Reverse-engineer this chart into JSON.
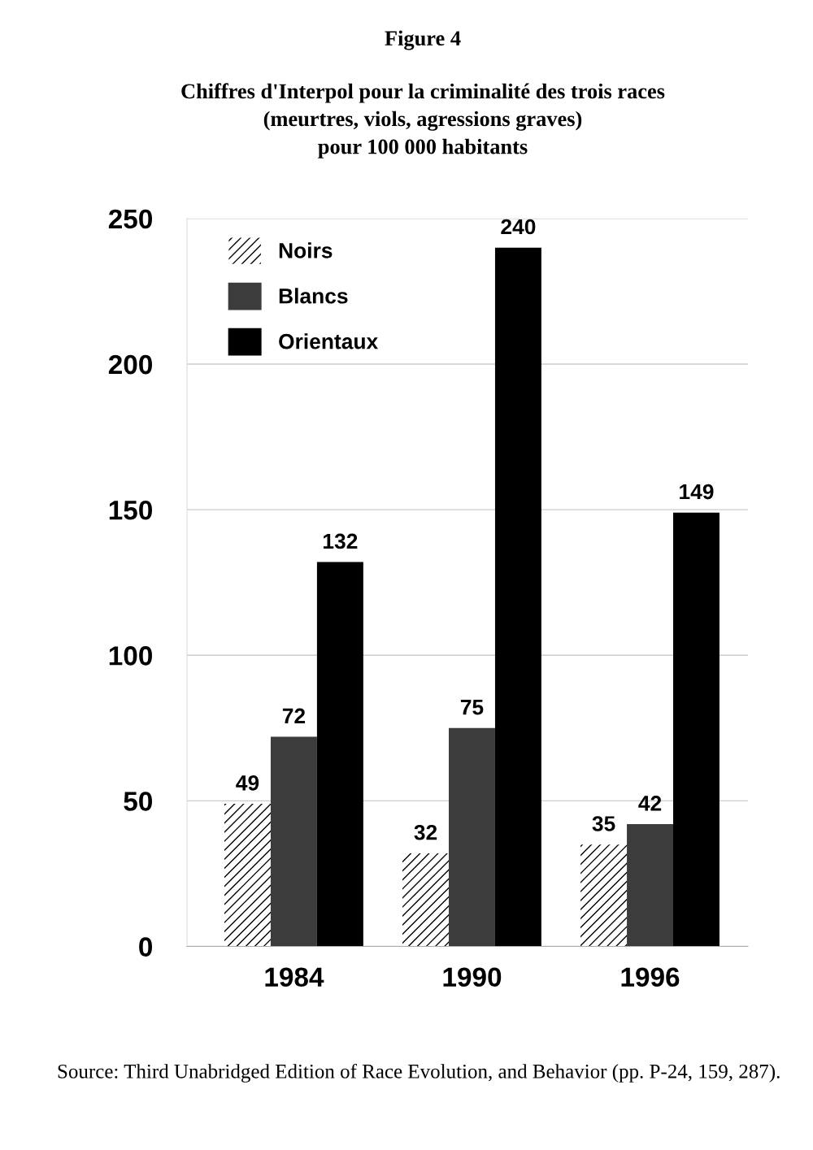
{
  "chart_data": {
    "type": "bar",
    "title": "Figure 4",
    "subtitle": "Chiffres d'Interpol pour la criminalité des trois races\n(meurtres, viols, agressions graves)\npour 100 000 habitants",
    "categories": [
      "1984",
      "1990",
      "1996"
    ],
    "series": [
      {
        "name": "Noirs",
        "color": "#000000",
        "values": [
          49,
          32,
          35
        ]
      },
      {
        "name": "Blancs",
        "color": "#3c3c3c",
        "values": [
          72,
          75,
          42
        ]
      },
      {
        "name": "Orientaux",
        "color": "#000000",
        "values": [
          132,
          240,
          149
        ]
      }
    ],
    "ylim": [
      0,
      250
    ],
    "yticks": [
      0,
      50,
      100,
      150,
      200,
      250
    ],
    "grid": "y",
    "legend": "top left",
    "data_labels": true,
    "annotations": [
      "Source: Third Unabridged Edition of Race Evolution, and Behavior (pp. P-24, 159, 287)."
    ]
  }
}
